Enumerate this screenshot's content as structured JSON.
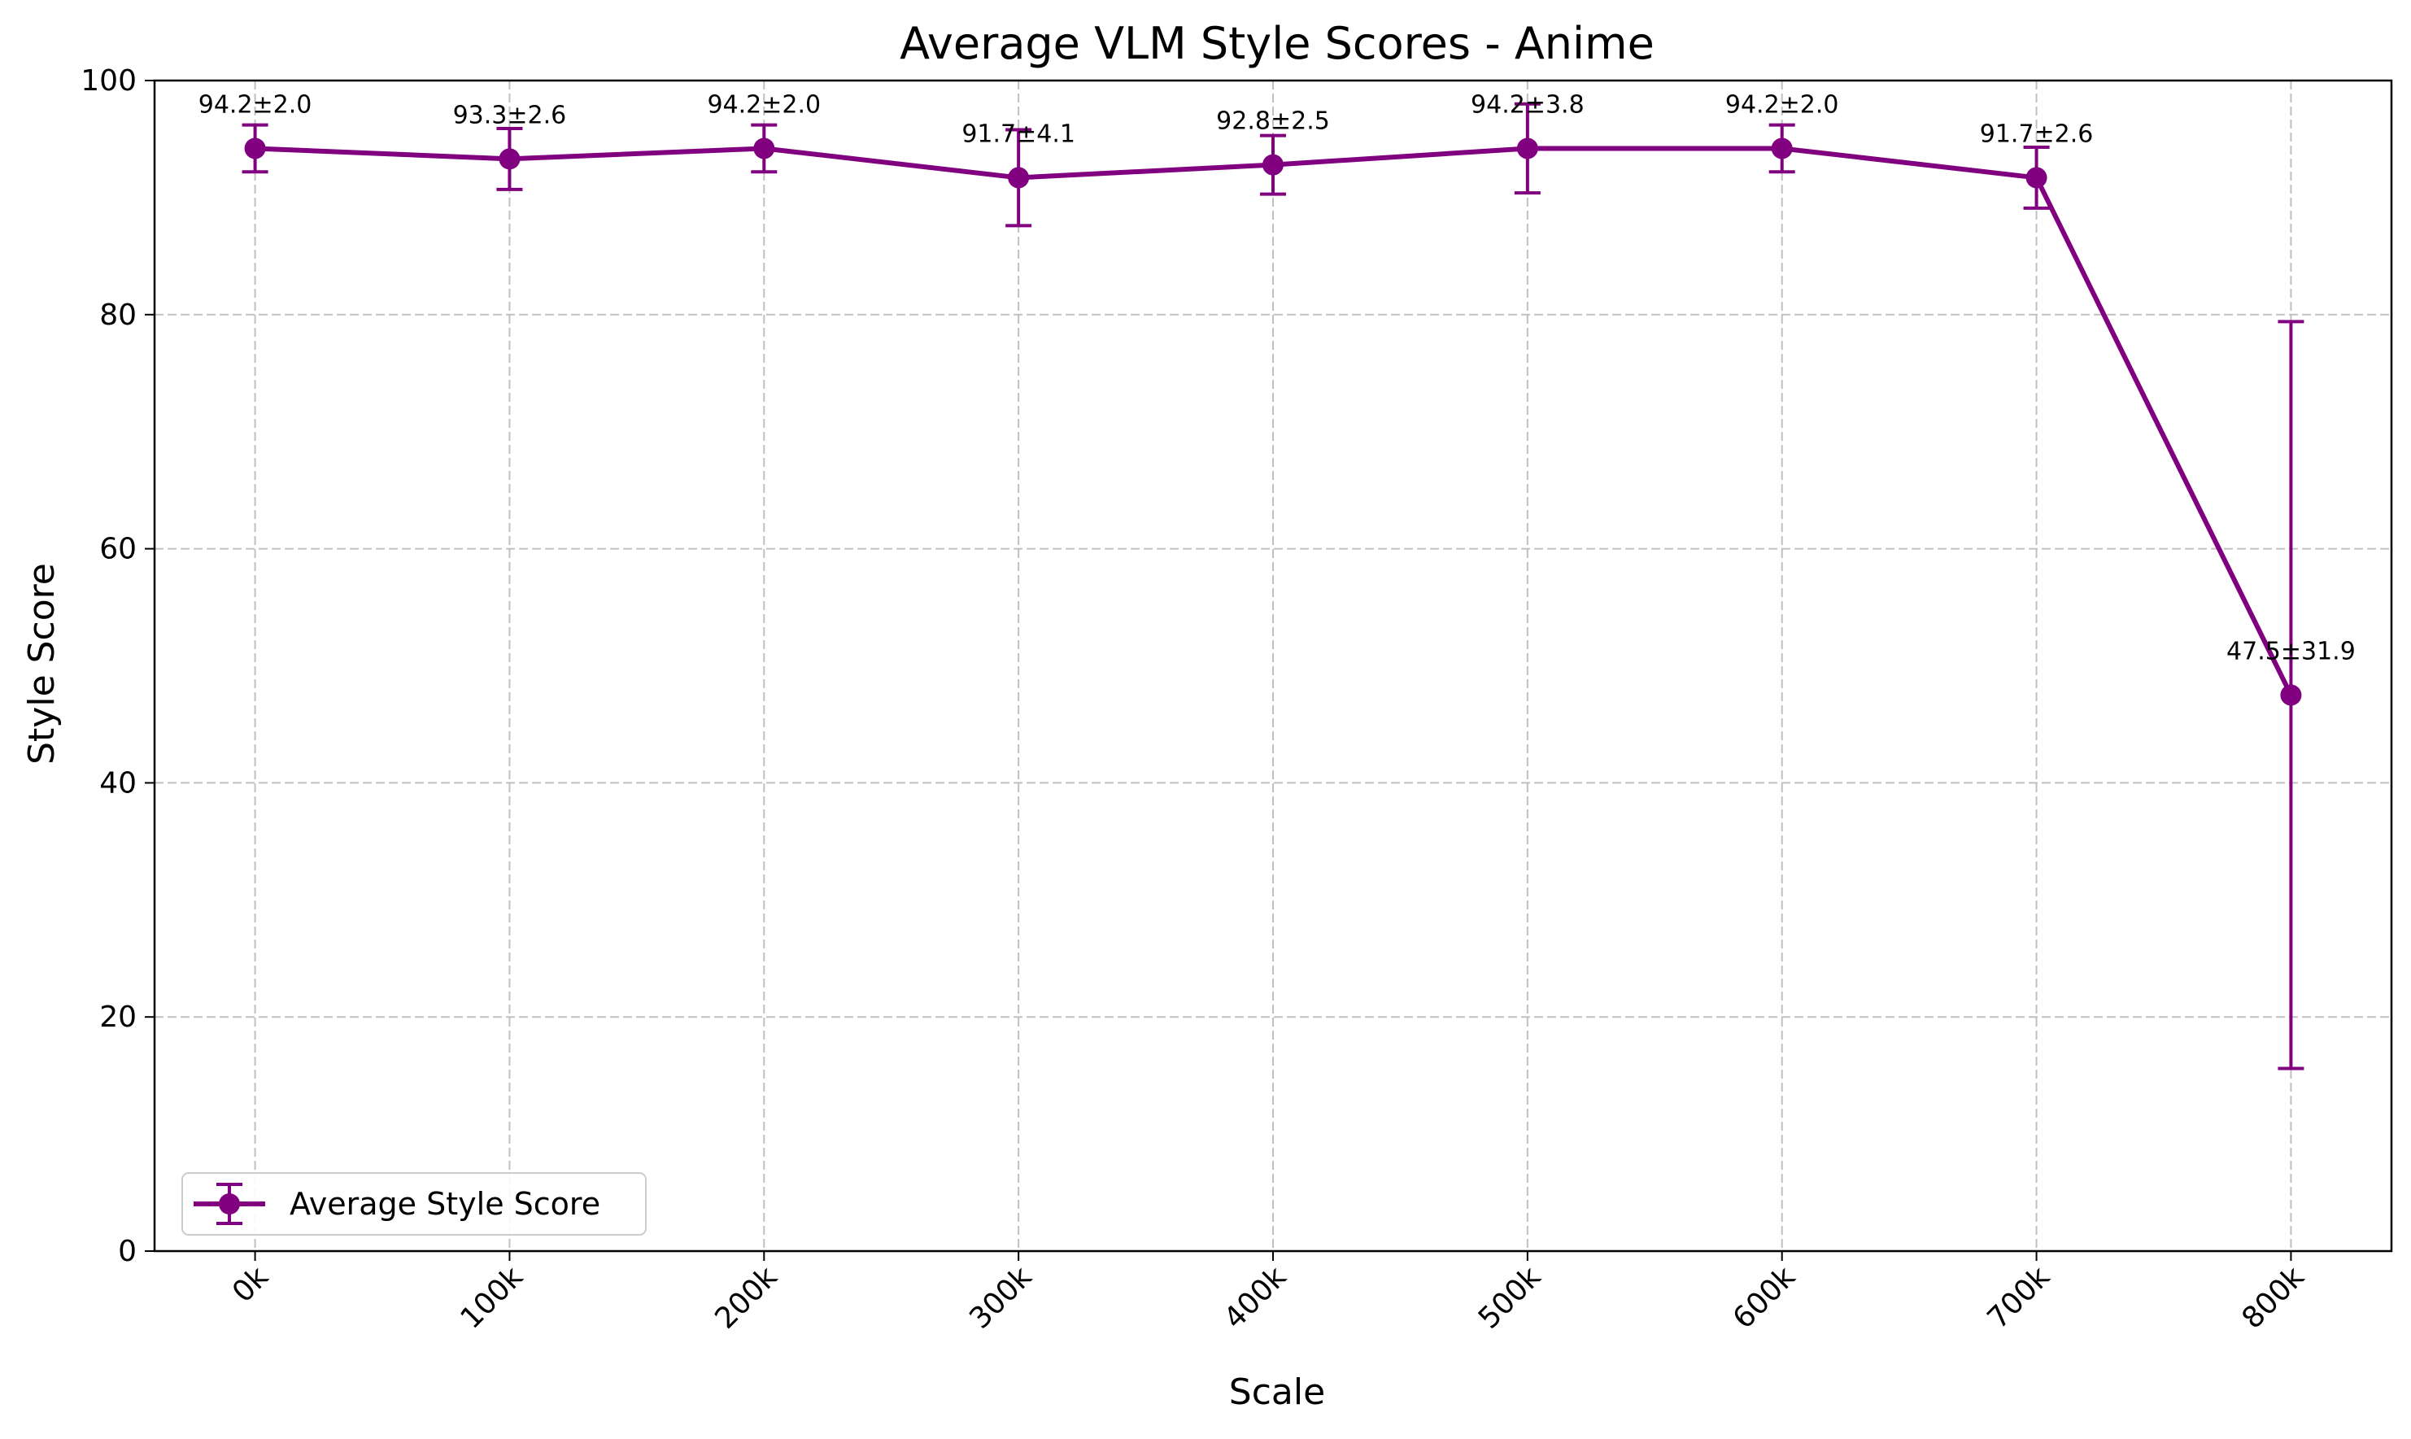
{
  "chart_data": {
    "type": "line",
    "title": "Average VLM Style Scores - Anime",
    "xlabel": "Scale",
    "ylabel": "Style Score",
    "categories": [
      "0k",
      "100k",
      "200k",
      "300k",
      "400k",
      "500k",
      "600k",
      "700k",
      "800k"
    ],
    "ylim": [
      0,
      100
    ],
    "yticks": [
      0,
      20,
      40,
      60,
      80,
      100
    ],
    "grid": true,
    "legend_position": "lower-left",
    "series": [
      {
        "name": "Average Style Score",
        "color": "#800080",
        "values": [
          94.2,
          93.3,
          94.2,
          91.7,
          92.8,
          94.2,
          94.2,
          91.7,
          47.5
        ],
        "errors": [
          2.0,
          2.6,
          2.0,
          4.1,
          2.5,
          3.8,
          2.0,
          2.6,
          31.9
        ],
        "labels": [
          "94.2±2.0",
          "93.3±2.6",
          "94.2±2.0",
          "91.7±4.1",
          "92.8±2.5",
          "94.2±3.8",
          "94.2±2.0",
          "91.7±2.6",
          "47.5±31.9"
        ]
      }
    ]
  }
}
